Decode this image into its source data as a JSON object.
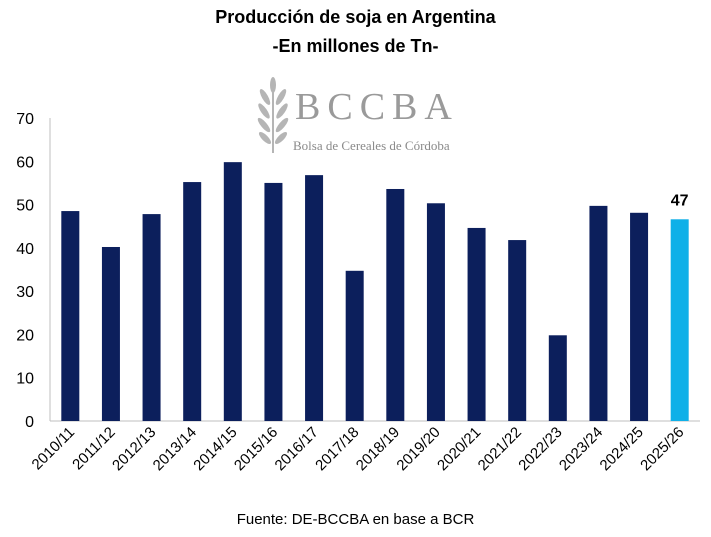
{
  "header": {
    "title": "Producción de soja en Argentina",
    "subtitle": "-En millones de Tn-"
  },
  "logo": {
    "name": "BCCBA",
    "tagline": "Bolsa de Cereales de Córdoba",
    "icon": "wheat-icon"
  },
  "footer": {
    "source": "Fuente: DE-BCCBA en base a BCR"
  },
  "colors": {
    "bar": "#0c1f5c",
    "highlight": "#0fb0e8"
  },
  "chart_data": {
    "type": "bar",
    "title": "Producción de soja en Argentina",
    "subtitle": "-En millones de Tn-",
    "categories": [
      "2010/11",
      "2011/12",
      "2012/13",
      "2013/14",
      "2014/15",
      "2015/16",
      "2016/17",
      "2017/18",
      "2018/19",
      "2019/20",
      "2020/21",
      "2021/22",
      "2022/23",
      "2023/24",
      "2024/25",
      "2025/26"
    ],
    "values": [
      48.5,
      40.2,
      47.8,
      55.2,
      59.8,
      55.0,
      56.8,
      34.7,
      53.6,
      50.3,
      44.6,
      41.8,
      19.8,
      49.7,
      48.1,
      46.6
    ],
    "highlight_index": 15,
    "data_labels": [
      {
        "index": 15,
        "text": "47"
      }
    ],
    "ylim": [
      0,
      70
    ],
    "yticks": [
      0,
      10,
      20,
      30,
      40,
      50,
      60,
      70
    ],
    "xlabel": "",
    "ylabel": "",
    "grid": false,
    "legend": "none"
  }
}
